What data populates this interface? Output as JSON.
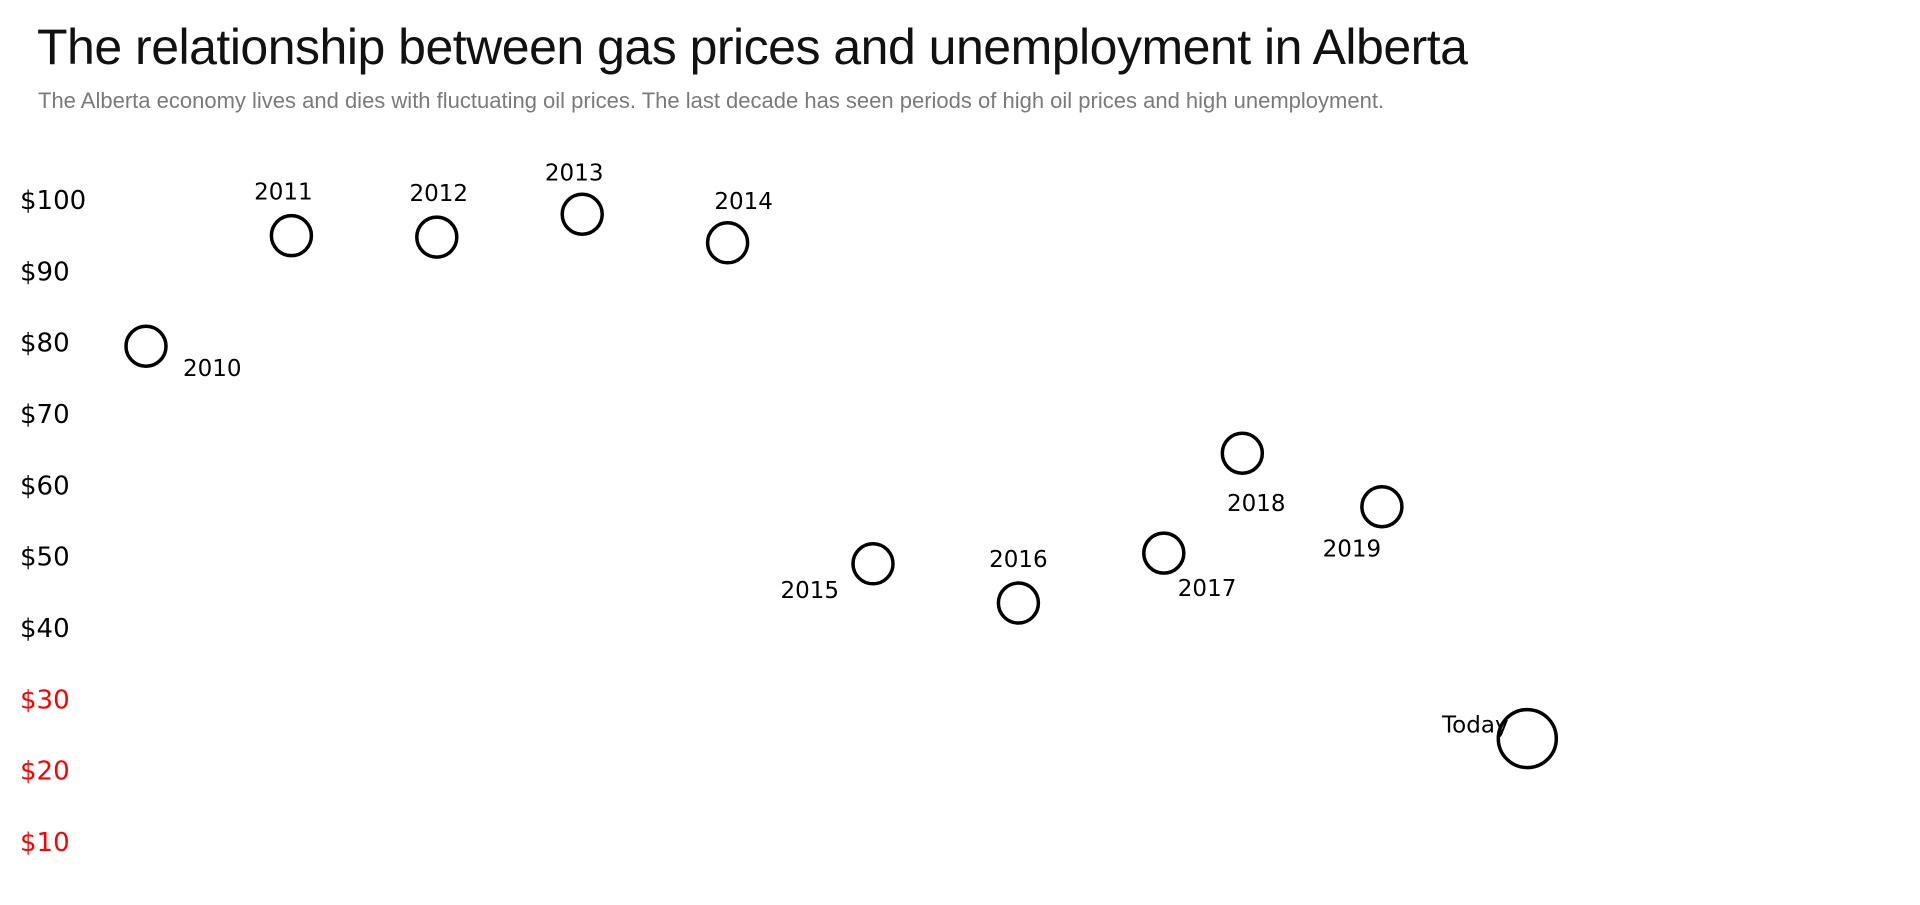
{
  "header": {
    "title": "The relationship between gas prices and unemployment in Alberta",
    "subtitle": "The Alberta economy lives and dies with fluctuating oil prices. The last decade has seen periods of high oil prices and high unemployment."
  },
  "colors": {
    "marker_stroke": "#000000",
    "tick_default": "#000000",
    "tick_low": "#ff0000"
  },
  "chart_data": {
    "type": "scatter",
    "title": "The relationship between gas prices and unemployment in Alberta",
    "subtitle": "The Alberta economy lives and dies with fluctuating oil prices. The last decade has seen periods of high oil prices and high unemployment.",
    "ylabel": "",
    "xlabel": "",
    "ylim": [
      5,
      105
    ],
    "yticks": [
      {
        "value": 100,
        "label": "$100",
        "color": "#000000"
      },
      {
        "value": 90,
        "label": "$90",
        "color": "#000000"
      },
      {
        "value": 80,
        "label": "$80",
        "color": "#000000"
      },
      {
        "value": 70,
        "label": "$70",
        "color": "#000000"
      },
      {
        "value": 60,
        "label": "$60",
        "color": "#000000"
      },
      {
        "value": 50,
        "label": "$50",
        "color": "#000000"
      },
      {
        "value": 40,
        "label": "$40",
        "color": "#000000"
      },
      {
        "value": 30,
        "label": "$30",
        "color": "#ff0000"
      },
      {
        "value": 20,
        "label": "$20",
        "color": "#ff0000"
      },
      {
        "value": 10,
        "label": "$10",
        "color": "#ff0000"
      }
    ],
    "grid": false,
    "points": [
      {
        "label": "2010",
        "order": 0,
        "y": 79.5
      },
      {
        "label": "2011",
        "order": 1,
        "y": 95
      },
      {
        "label": "2012",
        "order": 2,
        "y": 94.8
      },
      {
        "label": "2013",
        "order": 3,
        "y": 98
      },
      {
        "label": "2014",
        "order": 4,
        "y": 94
      },
      {
        "label": "2015",
        "order": 5,
        "y": 49
      },
      {
        "label": "2016",
        "order": 6,
        "y": 43.5
      },
      {
        "label": "2017",
        "order": 7,
        "y": 50.5
      },
      {
        "label": "2018",
        "order": 7.54,
        "y": 64.5
      },
      {
        "label": "2019",
        "order": 8.5,
        "y": 57
      },
      {
        "label": "Today",
        "order": 9.5,
        "y": 24.5,
        "emphasis": true
      }
    ]
  }
}
